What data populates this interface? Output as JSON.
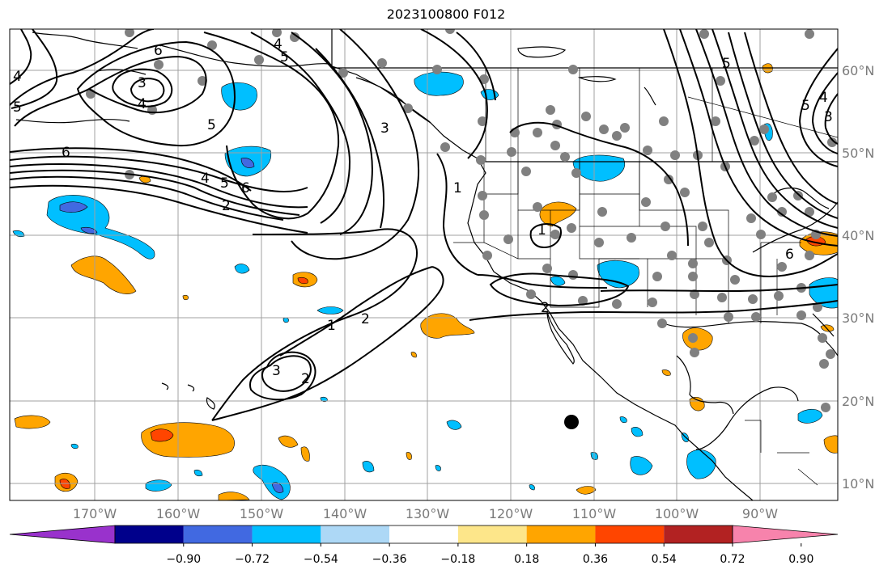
{
  "title": "2023100800 F012",
  "lon_labels": [
    "170°W",
    "160°W",
    "150°W",
    "140°W",
    "130°W",
    "120°W",
    "110°W",
    "100°W",
    "90°W"
  ],
  "lat_labels": [
    "60°N",
    "50°N",
    "40°N",
    "30°N",
    "20°N",
    "10°N"
  ],
  "colorbar": {
    "ticks": [
      "−0.90",
      "−0.72",
      "−0.54",
      "−0.36",
      "−0.18",
      "0.18",
      "0.36",
      "0.54",
      "0.72",
      "0.90"
    ],
    "colors": [
      "#9932cc",
      "#00008b",
      "#4169e1",
      "#00bfff",
      "#add8f6",
      "#ffffff",
      "#fde68a",
      "#ffa500",
      "#ff4500",
      "#b22222",
      "#f783ac"
    ]
  },
  "contour_labels": [
    "6",
    "5",
    "4",
    "3",
    "2",
    "1"
  ],
  "colors": {
    "contour": "#000000",
    "grid": "#a0a0a0",
    "station_marker": "#808080",
    "highlight_marker": "#000000"
  }
}
